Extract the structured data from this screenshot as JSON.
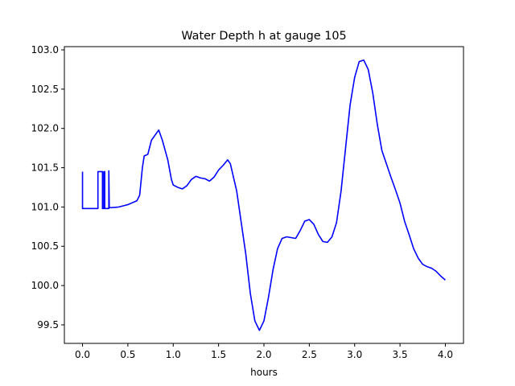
{
  "chart_data": {
    "type": "line",
    "title": "Water Depth h at gauge 105",
    "xlabel": "hours",
    "ylabel": "",
    "xlim": [
      -0.2,
      4.2
    ],
    "ylim": [
      99.264,
      103.041
    ],
    "xticks": [
      0.0,
      0.5,
      1.0,
      1.5,
      2.0,
      2.5,
      3.0,
      3.5,
      4.0
    ],
    "xtick_labels": [
      "0.0",
      "0.5",
      "1.0",
      "1.5",
      "2.0",
      "2.5",
      "3.0",
      "3.5",
      "4.0"
    ],
    "yticks": [
      99.5,
      100.0,
      100.5,
      101.0,
      101.5,
      102.0,
      102.5,
      103.0
    ],
    "ytick_labels": [
      "99.5",
      "100.0",
      "100.5",
      "101.0",
      "101.5",
      "102.0",
      "102.5",
      "103.0"
    ],
    "grid": false,
    "series": [
      {
        "name": "h",
        "color": "#0000ff",
        "x": [
          0,
          0,
          0.17,
          0.17,
          0.22,
          0.22,
          0.235,
          0.235,
          0.245,
          0.245,
          0.29,
          0.29,
          0.295,
          0.4,
          0.5,
          0.6,
          0.63,
          0.66,
          0.68,
          0.72,
          0.76,
          0.84,
          0.88,
          0.94,
          0.98,
          1.0,
          1.05,
          1.1,
          1.15,
          1.2,
          1.25,
          1.3,
          1.35,
          1.4,
          1.45,
          1.5,
          1.55,
          1.6,
          1.63,
          1.7,
          1.8,
          1.85,
          1.9,
          1.95,
          2.0,
          2.05,
          2.1,
          2.15,
          2.2,
          2.25,
          2.3,
          2.35,
          2.4,
          2.45,
          2.5,
          2.55,
          2.6,
          2.65,
          2.7,
          2.75,
          2.8,
          2.85,
          2.9,
          2.95,
          3.0,
          3.05,
          3.1,
          3.15,
          3.2,
          3.25,
          3.3,
          3.35,
          3.4,
          3.45,
          3.5,
          3.55,
          3.6,
          3.65,
          3.7,
          3.75,
          3.8,
          3.85,
          3.9,
          3.95,
          4.0
        ],
        "y": [
          101.45,
          100.98,
          100.98,
          101.45,
          101.45,
          100.98,
          100.98,
          101.45,
          101.45,
          100.98,
          100.98,
          101.46,
          100.99,
          101.0,
          101.03,
          101.08,
          101.15,
          101.5,
          101.65,
          101.67,
          101.85,
          101.98,
          101.85,
          101.6,
          101.35,
          101.28,
          101.25,
          101.23,
          101.27,
          101.35,
          101.39,
          101.37,
          101.36,
          101.33,
          101.38,
          101.47,
          101.53,
          101.6,
          101.55,
          101.2,
          100.4,
          99.9,
          99.55,
          99.43,
          99.55,
          99.85,
          100.2,
          100.47,
          100.6,
          100.62,
          100.61,
          100.6,
          100.7,
          100.82,
          100.84,
          100.78,
          100.65,
          100.56,
          100.55,
          100.62,
          100.8,
          101.2,
          101.75,
          102.3,
          102.65,
          102.85,
          102.87,
          102.75,
          102.45,
          102.05,
          101.72,
          101.55,
          101.38,
          101.22,
          101.05,
          100.82,
          100.65,
          100.47,
          100.35,
          100.27,
          100.24,
          100.22,
          100.18,
          100.12,
          100.07
        ]
      }
    ]
  }
}
